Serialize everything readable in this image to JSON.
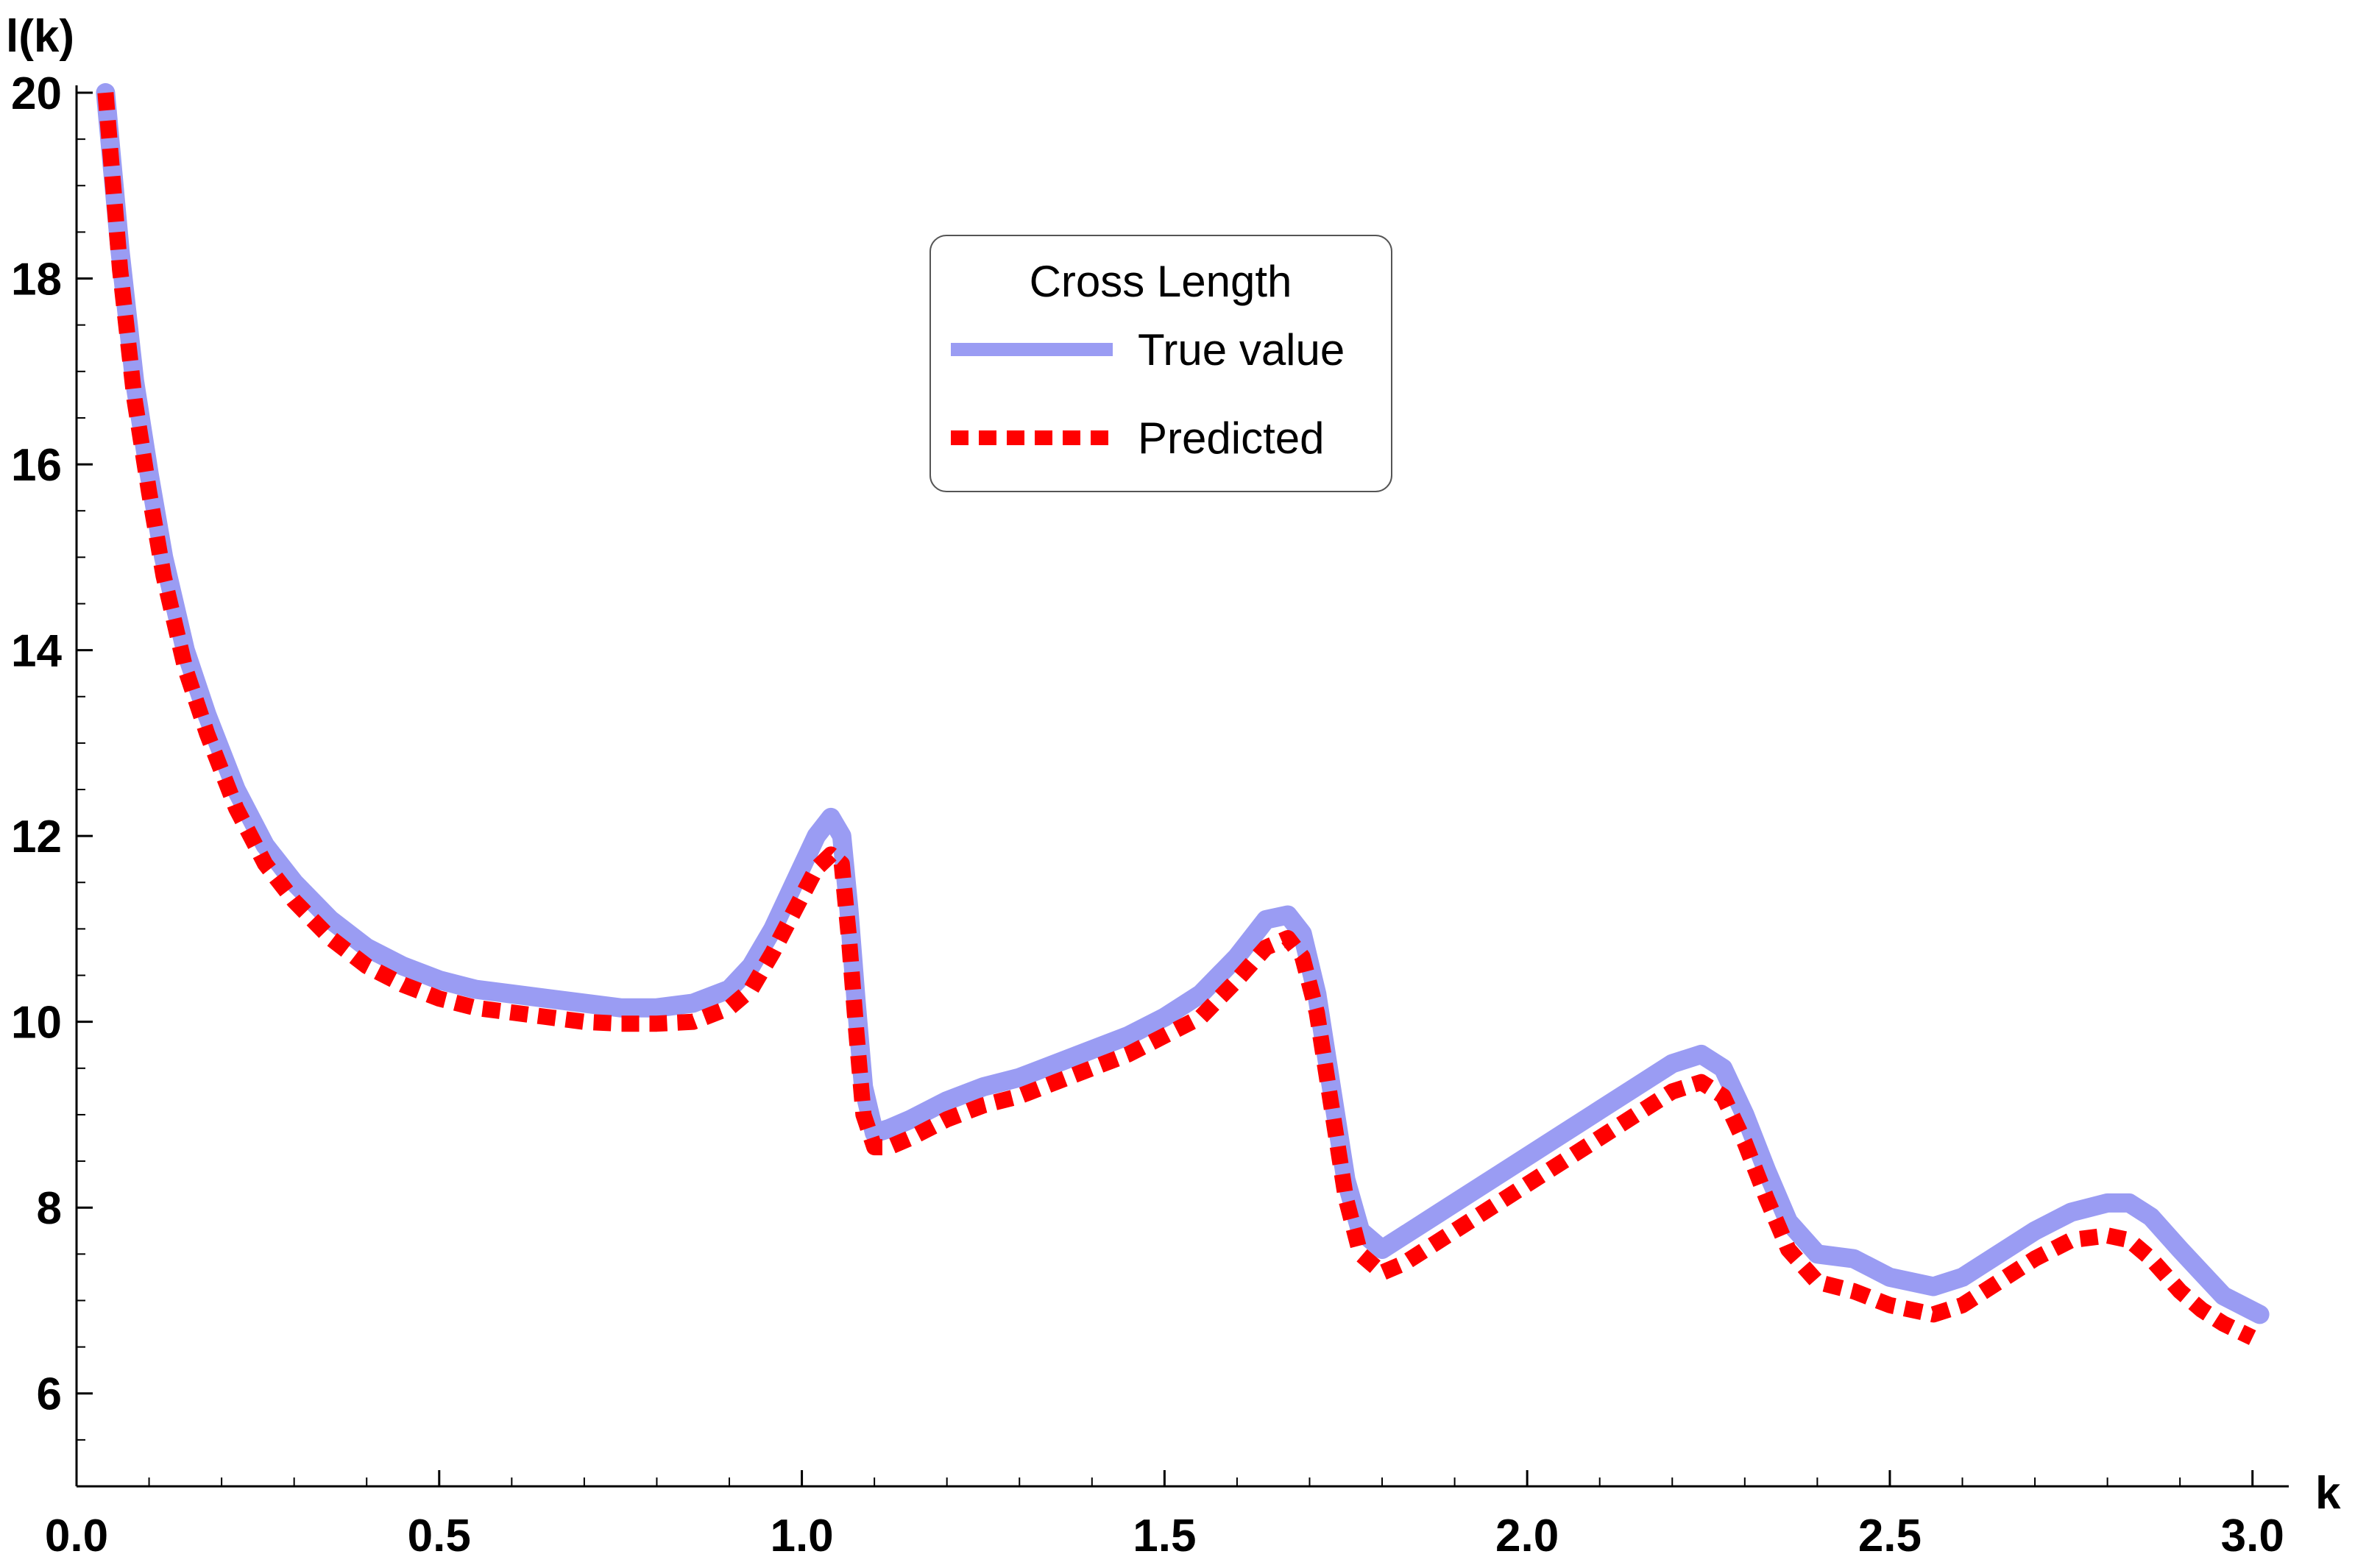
{
  "chart_data": {
    "type": "line",
    "xlabel": "k",
    "ylabel": "l(k)",
    "xlim": [
      0,
      3.05
    ],
    "ylim": [
      5,
      20
    ],
    "x_ticks": [
      0.0,
      0.5,
      1.0,
      1.5,
      2.0,
      2.5,
      3.0
    ],
    "x_tick_labels": [
      "0.0",
      "0.5",
      "1.0",
      "1.5",
      "2.0",
      "2.5",
      "3.0"
    ],
    "y_ticks": [
      6,
      8,
      10,
      12,
      14,
      16,
      18,
      20
    ],
    "y_tick_labels": [
      "6",
      "8",
      "10",
      "12",
      "14",
      "16",
      "18",
      "20"
    ],
    "legend": {
      "title": "Cross Length",
      "position": "top-center"
    },
    "series": [
      {
        "name": "True value",
        "color": "#9a9cf3",
        "style": "solid",
        "x": [
          0.04,
          0.06,
          0.08,
          0.1,
          0.12,
          0.15,
          0.18,
          0.22,
          0.26,
          0.3,
          0.35,
          0.4,
          0.45,
          0.5,
          0.55,
          0.6,
          0.65,
          0.7,
          0.75,
          0.8,
          0.85,
          0.9,
          0.93,
          0.96,
          0.99,
          1.02,
          1.04,
          1.055,
          1.065,
          1.075,
          1.085,
          1.1,
          1.12,
          1.15,
          1.2,
          1.25,
          1.3,
          1.35,
          1.4,
          1.45,
          1.5,
          1.55,
          1.6,
          1.64,
          1.67,
          1.69,
          1.71,
          1.73,
          1.75,
          1.77,
          1.8,
          1.83,
          1.88,
          1.95,
          2.0,
          2.05,
          2.1,
          2.15,
          2.2,
          2.24,
          2.27,
          2.3,
          2.33,
          2.36,
          2.4,
          2.45,
          2.5,
          2.56,
          2.6,
          2.65,
          2.7,
          2.75,
          2.8,
          2.83,
          2.86,
          2.9,
          2.93,
          2.96,
          3.01
        ],
        "y": [
          20.0,
          18.3,
          16.9,
          15.9,
          15.0,
          14.0,
          13.3,
          12.5,
          11.9,
          11.5,
          11.1,
          10.8,
          10.6,
          10.45,
          10.35,
          10.3,
          10.25,
          10.2,
          10.15,
          10.15,
          10.2,
          10.35,
          10.6,
          11.0,
          11.5,
          12.0,
          12.2,
          12.0,
          11.2,
          10.2,
          9.3,
          8.8,
          8.85,
          8.95,
          9.15,
          9.3,
          9.4,
          9.55,
          9.7,
          9.85,
          10.05,
          10.3,
          10.7,
          11.1,
          11.15,
          10.95,
          10.3,
          9.3,
          8.3,
          7.75,
          7.55,
          7.7,
          7.95,
          8.3,
          8.55,
          8.8,
          9.05,
          9.3,
          9.55,
          9.65,
          9.5,
          9.0,
          8.4,
          7.85,
          7.5,
          7.45,
          7.25,
          7.15,
          7.25,
          7.5,
          7.75,
          7.95,
          8.05,
          8.05,
          7.9,
          7.55,
          7.3,
          7.05,
          6.85
        ]
      },
      {
        "name": "Predicted",
        "color": "#ff0000",
        "style": "dotted",
        "x": [
          0.04,
          0.06,
          0.08,
          0.1,
          0.12,
          0.15,
          0.18,
          0.22,
          0.26,
          0.3,
          0.35,
          0.4,
          0.45,
          0.5,
          0.55,
          0.6,
          0.65,
          0.7,
          0.75,
          0.8,
          0.85,
          0.9,
          0.93,
          0.96,
          0.99,
          1.02,
          1.04,
          1.055,
          1.065,
          1.075,
          1.085,
          1.1,
          1.12,
          1.15,
          1.2,
          1.25,
          1.3,
          1.35,
          1.4,
          1.45,
          1.5,
          1.55,
          1.6,
          1.64,
          1.67,
          1.69,
          1.71,
          1.73,
          1.75,
          1.77,
          1.8,
          1.83,
          1.88,
          1.95,
          2.0,
          2.05,
          2.1,
          2.15,
          2.2,
          2.24,
          2.27,
          2.3,
          2.33,
          2.36,
          2.4,
          2.45,
          2.5,
          2.56,
          2.6,
          2.65,
          2.7,
          2.75,
          2.8,
          2.83,
          2.86,
          2.9,
          2.93,
          2.96,
          3.0
        ],
        "y": [
          20.0,
          18.1,
          16.7,
          15.7,
          14.8,
          13.8,
          13.1,
          12.3,
          11.7,
          11.3,
          10.9,
          10.6,
          10.4,
          10.25,
          10.15,
          10.1,
          10.05,
          10.0,
          9.98,
          9.98,
          10.0,
          10.15,
          10.35,
          10.75,
          11.2,
          11.65,
          11.8,
          11.7,
          10.9,
          9.9,
          9.0,
          8.65,
          8.65,
          8.75,
          8.95,
          9.1,
          9.2,
          9.35,
          9.5,
          9.65,
          9.85,
          10.05,
          10.45,
          10.8,
          10.9,
          10.7,
          10.1,
          9.1,
          8.1,
          7.5,
          7.3,
          7.4,
          7.65,
          8.0,
          8.25,
          8.5,
          8.75,
          9.0,
          9.25,
          9.35,
          9.2,
          8.7,
          8.1,
          7.55,
          7.2,
          7.1,
          6.95,
          6.85,
          6.95,
          7.2,
          7.45,
          7.65,
          7.7,
          7.65,
          7.45,
          7.1,
          6.9,
          6.75,
          6.6
        ]
      }
    ]
  }
}
